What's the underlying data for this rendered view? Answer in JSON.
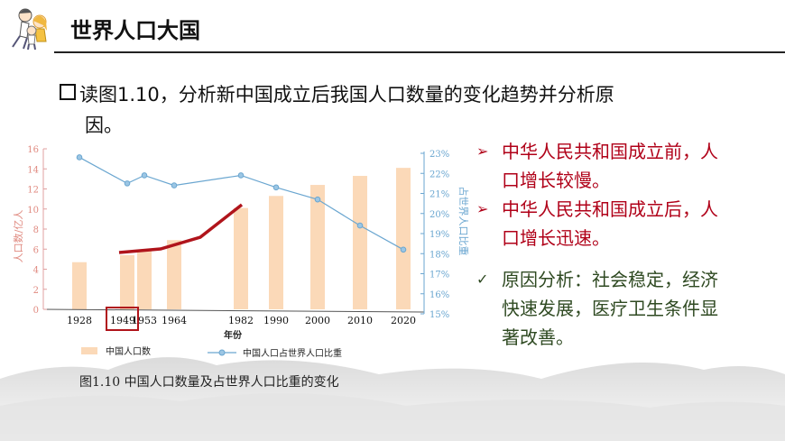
{
  "header": {
    "title": "世界人口大国"
  },
  "question": {
    "line1": "读图1.10，分析新中国成立后我国人口数量的变化趋势并分析原",
    "line2": "因。"
  },
  "answers": [
    {
      "marker": "➢",
      "line1": "中华人民共和国成立前，人",
      "line2": "口增长较慢。"
    },
    {
      "marker": "➢",
      "line1": "中华人民共和国成立后，人",
      "line2": "口增长迅速。"
    }
  ],
  "reason": {
    "marker": "✓",
    "line1": "原因分析：社会稳定，经济",
    "line2": "快速发展，医疗卫生条件显",
    "line3": "著改善。"
  },
  "colors": {
    "answer_red": "#b00018",
    "reason_green": "#2f4a22",
    "bar": "#fbd9b8",
    "line": "#6aa6d0",
    "highlight": "#b0141b"
  },
  "chart_data": {
    "type": "bar+line",
    "caption": "图1.10  中国人口数量及占世界人口比重的变化",
    "xlabel": "年份",
    "ylabel_left": "人口数/亿人",
    "ylabel_right": "占世界人口比重",
    "categories": [
      "1928",
      "1949",
      "1953",
      "1964",
      "1982",
      "1990",
      "2000",
      "2010",
      "2020"
    ],
    "left_axis": {
      "range": [
        0,
        16
      ],
      "ticks": [
        "0",
        "2",
        "4",
        "6",
        "8",
        "10",
        "12",
        "14",
        "16"
      ]
    },
    "right_axis": {
      "range": [
        15,
        23
      ],
      "ticks": [
        "15%",
        "16%",
        "17%",
        "18%",
        "19%",
        "20%",
        "21%",
        "22%",
        "23%"
      ]
    },
    "series": [
      {
        "name": "中国人口数",
        "type": "bar",
        "axis": "left",
        "values": [
          4.7,
          5.4,
          5.8,
          6.9,
          10.1,
          11.3,
          12.4,
          13.3,
          14.1
        ]
      },
      {
        "name": "中国人口占世界人口比重",
        "type": "line",
        "axis": "right",
        "values": [
          22.8,
          21.5,
          21.9,
          21.4,
          21.9,
          21.3,
          20.7,
          19.4,
          18.2
        ]
      }
    ],
    "highlighted_category": "1949"
  }
}
